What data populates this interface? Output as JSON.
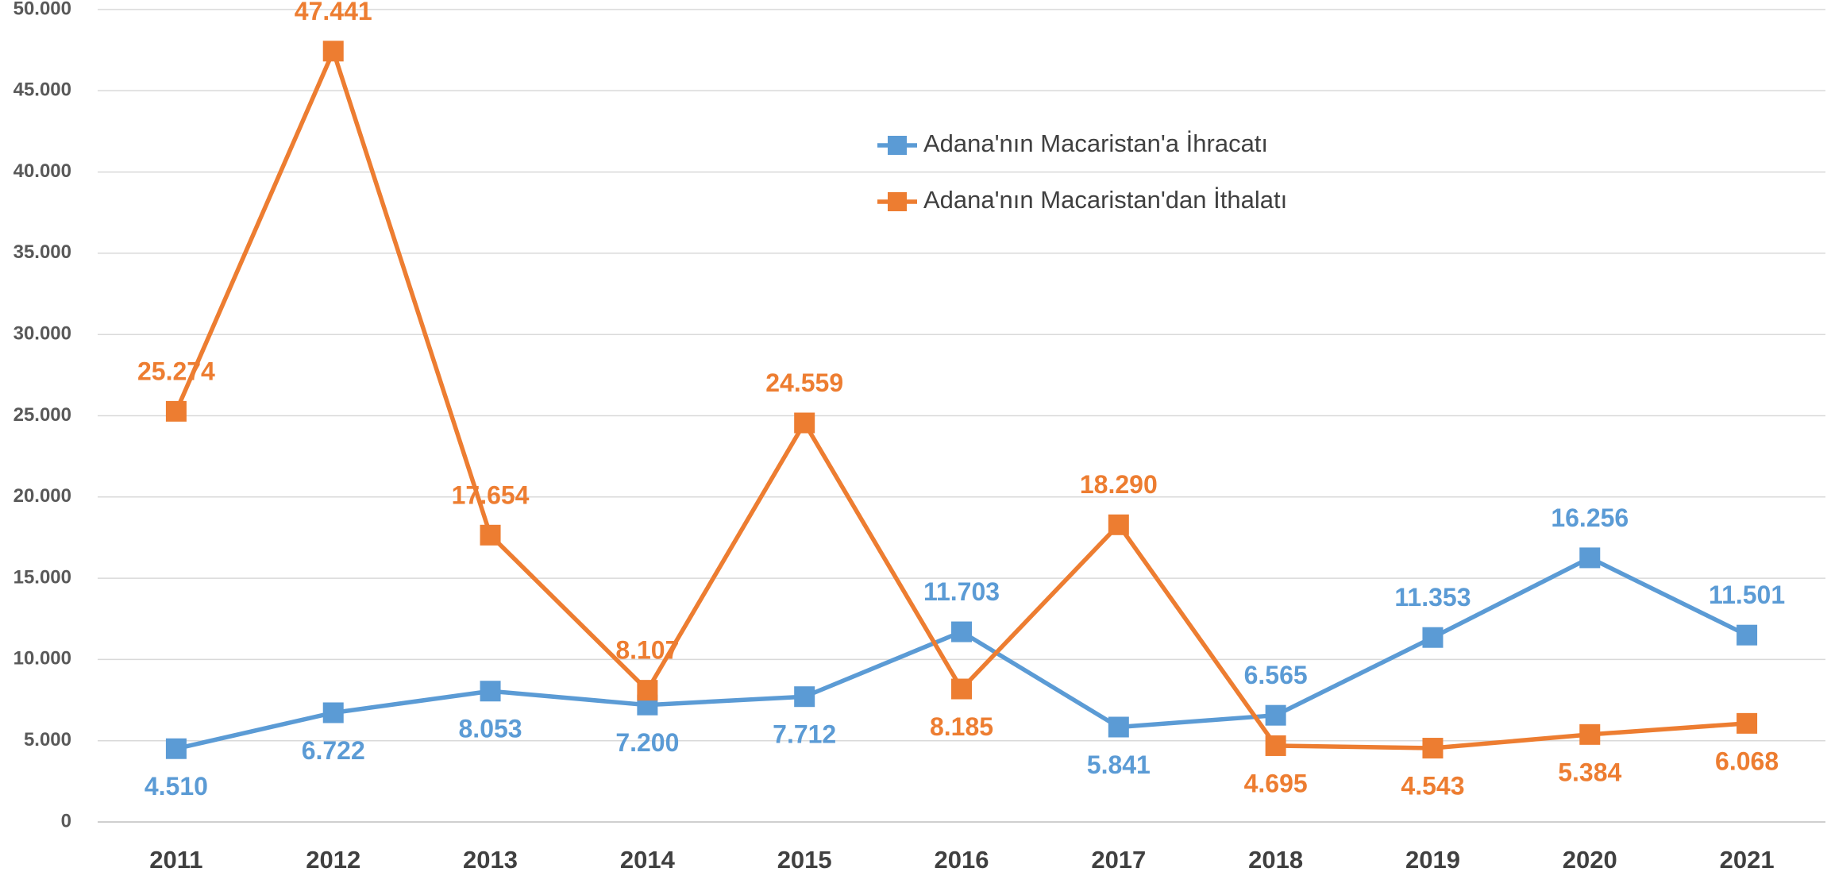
{
  "chart_data": {
    "type": "line",
    "categories": [
      "2011",
      "2012",
      "2013",
      "2014",
      "2015",
      "2016",
      "2017",
      "2018",
      "2019",
      "2020",
      "2021"
    ],
    "series": [
      {
        "name": "Adana'nın Macaristan'a İhracatı",
        "color": "#5b9bd5",
        "values": [
          4510,
          6722,
          8053,
          7200,
          7712,
          11703,
          5841,
          6565,
          11353,
          16256,
          11501
        ],
        "value_labels": [
          "4.510",
          "6.722",
          "8.053",
          "7.200",
          "7.712",
          "11.703",
          "5.841",
          "6.565",
          "11.353",
          "16.256",
          "11.501"
        ]
      },
      {
        "name": "Adana'nın Macaristan'dan İthalatı",
        "color": "#ed7d31",
        "values": [
          25274,
          47441,
          17654,
          8107,
          24559,
          8185,
          18290,
          4695,
          4543,
          5384,
          6068
        ],
        "value_labels": [
          "25.274",
          "47.441",
          "17.654",
          "8.107",
          "24.559",
          "8.185",
          "18.290",
          "4.695",
          "4.543",
          "5.384",
          "6.068"
        ]
      }
    ],
    "ylim": [
      0,
      50000
    ],
    "yticks": [
      0,
      {
        "value": 5000,
        "label": "5.000"
      },
      {
        "value": 10000,
        "label": "10.000"
      },
      {
        "value": 15000,
        "label": "15.000"
      },
      {
        "value": 20000,
        "label": "20.000"
      },
      {
        "value": 25000,
        "label": "25.000"
      },
      {
        "value": 30000,
        "label": "30.000"
      },
      {
        "value": 35000,
        "label": "35.000"
      },
      {
        "value": 40000,
        "label": "40.000"
      },
      {
        "value": 45000,
        "label": "45.000"
      },
      {
        "value": 50000,
        "label": "50.000"
      }
    ],
    "grid": true
  }
}
